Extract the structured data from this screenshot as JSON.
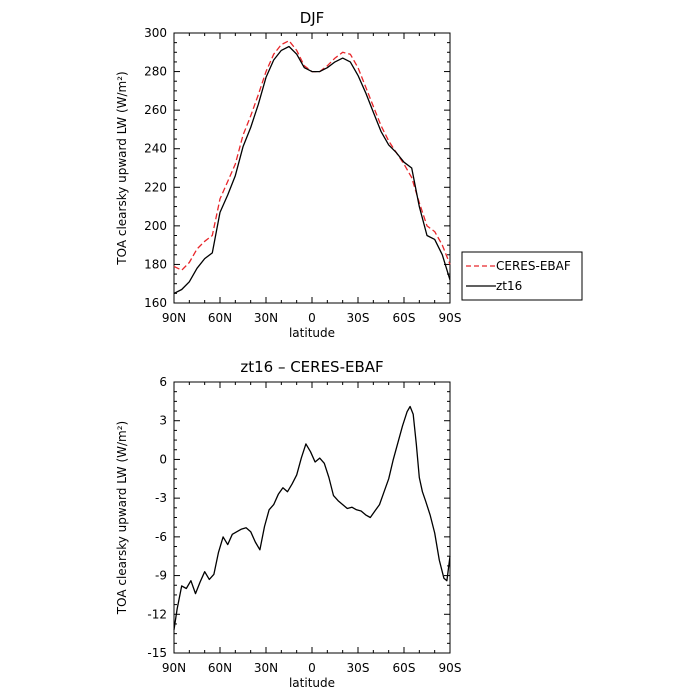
{
  "chart_data": [
    {
      "type": "line",
      "title": "DJF",
      "xlabel": "latitude",
      "ylabel": "TOA clearsky upward LW (W/m²)",
      "xlim": [
        90,
        -90
      ],
      "ylim": [
        160,
        300
      ],
      "xticks": [
        "90N",
        "60N",
        "30N",
        "0",
        "30S",
        "60S",
        "90S"
      ],
      "yticks": [
        "160",
        "180",
        "200",
        "220",
        "240",
        "260",
        "280",
        "300"
      ],
      "grid": false,
      "legend": "right-outside",
      "legend_entries": [
        "CERES-EBAF",
        "zt16"
      ],
      "x": [
        90,
        85,
        80,
        75,
        70,
        65,
        60,
        55,
        50,
        45,
        40,
        35,
        30,
        25,
        20,
        15,
        10,
        5,
        0,
        -5,
        -10,
        -15,
        -20,
        -25,
        -30,
        -35,
        -40,
        -45,
        -50,
        -55,
        -60,
        -65,
        -70,
        -75,
        -80,
        -85,
        -90
      ],
      "series": [
        {
          "name": "CERES-EBAF",
          "color": "#e8262a",
          "dash": "dashed",
          "values": [
            179,
            177,
            181,
            188,
            192,
            195,
            214,
            223,
            232,
            247,
            257,
            268,
            280,
            289,
            294,
            296,
            291,
            283,
            280,
            280,
            283,
            287,
            290,
            289,
            282,
            272,
            262,
            252,
            244,
            238,
            232,
            225,
            212,
            200,
            197,
            190,
            180
          ]
        },
        {
          "name": "zt16",
          "color": "#000000",
          "dash": "solid",
          "values": [
            165,
            167,
            171,
            178,
            183,
            186,
            207,
            216,
            226,
            241,
            251,
            263,
            277,
            286,
            291,
            293,
            289,
            282,
            280,
            280,
            282,
            285,
            287,
            285,
            278,
            269,
            259,
            249,
            242,
            238,
            233,
            230,
            210,
            195,
            193,
            185,
            172
          ]
        }
      ]
    },
    {
      "type": "line",
      "title": "zt16 – CERES-EBAF",
      "xlabel": "latitude",
      "ylabel": "TOA clearsky upward LW (W/m²)",
      "xlim": [
        90,
        -90
      ],
      "ylim": [
        -15,
        6
      ],
      "xticks": [
        "90N",
        "60N",
        "30N",
        "0",
        "30S",
        "60S",
        "90S"
      ],
      "yticks": [
        "-15",
        "-12",
        "-9",
        "-6",
        "-3",
        "0",
        "3",
        "6"
      ],
      "grid": false,
      "x": [
        90,
        88,
        85,
        82,
        79,
        76,
        73,
        70,
        67,
        64,
        61,
        58,
        55,
        52,
        49,
        46,
        43,
        40,
        37,
        34,
        31,
        28,
        25,
        22,
        19,
        16,
        13,
        10,
        7,
        4,
        1,
        -2,
        -5,
        -8,
        -11,
        -14,
        -17,
        -20,
        -23,
        -26,
        -29,
        -32,
        -35,
        -38,
        -41,
        -44,
        -47,
        -50,
        -53,
        -56,
        -59,
        -62,
        -64,
        -66,
        -68,
        -70,
        -72,
        -74,
        -77,
        -80,
        -83,
        -86,
        -88,
        -90
      ],
      "series": [
        {
          "name": "zt16 – CERES-EBAF",
          "color": "#000000",
          "dash": "solid",
          "values": [
            -13.2,
            -11.6,
            -9.8,
            -10.0,
            -9.4,
            -10.4,
            -9.5,
            -8.7,
            -9.3,
            -8.9,
            -7.2,
            -6.0,
            -6.6,
            -5.8,
            -5.6,
            -5.4,
            -5.3,
            -5.6,
            -6.4,
            -7.0,
            -5.2,
            -3.9,
            -3.5,
            -2.7,
            -2.2,
            -2.5,
            -1.9,
            -1.2,
            0.1,
            1.2,
            0.6,
            -0.2,
            0.1,
            -0.3,
            -1.4,
            -2.8,
            -3.2,
            -3.5,
            -3.8,
            -3.7,
            -3.9,
            -4.0,
            -4.3,
            -4.5,
            -4.0,
            -3.5,
            -2.5,
            -1.5,
            0.0,
            1.3,
            2.6,
            3.7,
            4.1,
            3.5,
            1.2,
            -1.4,
            -2.5,
            -3.2,
            -4.3,
            -5.7,
            -7.8,
            -9.2,
            -9.4,
            -7.5
          ]
        }
      ]
    }
  ]
}
